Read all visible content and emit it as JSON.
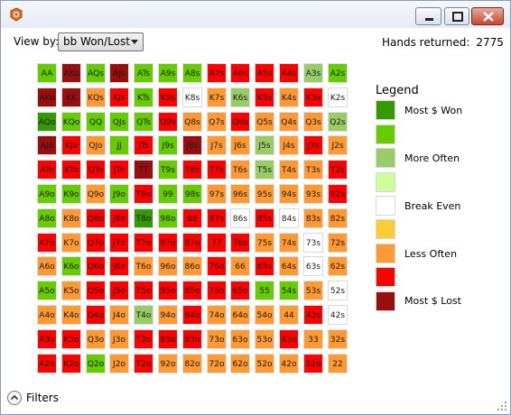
{
  "toolbar": {
    "view_by_label": "View by:",
    "view_by_value": "bb Won/Lost",
    "hands_label": "Hands returned:",
    "hands_value": "2775"
  },
  "colors": {
    "dg": "#339a00",
    "lg": "#66cc00",
    "pg": "#99cc66",
    "vl": "#ccff99",
    "w": "#ffffff",
    "y": "#ffcc33",
    "o": "#ff9933",
    "r": "#ff0000",
    "dr": "#990f0f"
  },
  "matrix": {
    "rows": [
      [
        [
          "AA",
          "lg"
        ],
        [
          "AKs",
          "dr"
        ],
        [
          "AQs",
          "lg"
        ],
        [
          "AJs",
          "dr"
        ],
        [
          "ATs",
          "lg"
        ],
        [
          "A9s",
          "lg"
        ],
        [
          "A8s",
          "lg"
        ],
        [
          "A7s",
          "r"
        ],
        [
          "A6s",
          "r"
        ],
        [
          "A5s",
          "r"
        ],
        [
          "A4s",
          "r"
        ],
        [
          "A3s",
          "pg"
        ],
        [
          "A2s",
          "lg"
        ]
      ],
      [
        [
          "AKo",
          "dr"
        ],
        [
          "KK",
          "dr"
        ],
        [
          "KQs",
          "o"
        ],
        [
          "KJs",
          "r"
        ],
        [
          "KTs",
          "lg"
        ],
        [
          "K9s",
          "r"
        ],
        [
          "K8s",
          "w"
        ],
        [
          "K7s",
          "o"
        ],
        [
          "K6s",
          "pg"
        ],
        [
          "K5s",
          "r"
        ],
        [
          "K4s",
          "o"
        ],
        [
          "K3s",
          "r"
        ],
        [
          "K2s",
          "w"
        ]
      ],
      [
        [
          "AQo",
          "dg"
        ],
        [
          "KQo",
          "lg"
        ],
        [
          "QQ",
          "lg"
        ],
        [
          "QJs",
          "lg"
        ],
        [
          "QTs",
          "lg"
        ],
        [
          "Q9s",
          "r"
        ],
        [
          "Q8s",
          "o"
        ],
        [
          "Q7s",
          "o"
        ],
        [
          "Q6s",
          "r"
        ],
        [
          "Q5s",
          "o"
        ],
        [
          "Q4s",
          "o"
        ],
        [
          "Q3s",
          "o"
        ],
        [
          "Q2s",
          "pg"
        ]
      ],
      [
        [
          "AJo",
          "dr"
        ],
        [
          "KJo",
          "r"
        ],
        [
          "QJo",
          "o"
        ],
        [
          "JJ",
          "lg"
        ],
        [
          "JTs",
          "r"
        ],
        [
          "J9s",
          "lg"
        ],
        [
          "J8s",
          "dr"
        ],
        [
          "J7s",
          "o"
        ],
        [
          "J6s",
          "o"
        ],
        [
          "J5s",
          "pg"
        ],
        [
          "J4s",
          "o"
        ],
        [
          "J3s",
          "r"
        ],
        [
          "J2s",
          "o"
        ]
      ],
      [
        [
          "ATo",
          "r"
        ],
        [
          "KTo",
          "r"
        ],
        [
          "QTo",
          "r"
        ],
        [
          "JTo",
          "r"
        ],
        [
          "TT",
          "dr"
        ],
        [
          "T9s",
          "lg"
        ],
        [
          "T8s",
          "r"
        ],
        [
          "T7s",
          "r"
        ],
        [
          "T6s",
          "o"
        ],
        [
          "T5s",
          "pg"
        ],
        [
          "T4s",
          "o"
        ],
        [
          "T3s",
          "o"
        ],
        [
          "T2s",
          "r"
        ]
      ],
      [
        [
          "A9o",
          "lg"
        ],
        [
          "K9o",
          "lg"
        ],
        [
          "Q9o",
          "o"
        ],
        [
          "J9o",
          "lg"
        ],
        [
          "T9o",
          "r"
        ],
        [
          "99",
          "lg"
        ],
        [
          "98s",
          "lg"
        ],
        [
          "97s",
          "o"
        ],
        [
          "96s",
          "o"
        ],
        [
          "95s",
          "o"
        ],
        [
          "94s",
          "o"
        ],
        [
          "93s",
          "o"
        ],
        [
          "92s",
          "r"
        ]
      ],
      [
        [
          "A8o",
          "lg"
        ],
        [
          "K8o",
          "o"
        ],
        [
          "Q8o",
          "r"
        ],
        [
          "J8o",
          "r"
        ],
        [
          "T8o",
          "dg"
        ],
        [
          "98o",
          "lg"
        ],
        [
          "88",
          "r"
        ],
        [
          "87s",
          "r"
        ],
        [
          "86s",
          "w"
        ],
        [
          "85s",
          "r"
        ],
        [
          "84s",
          "w"
        ],
        [
          "83s",
          "o"
        ],
        [
          "82s",
          "o"
        ]
      ],
      [
        [
          "A7o",
          "r"
        ],
        [
          "K7o",
          "o"
        ],
        [
          "Q7o",
          "r"
        ],
        [
          "J7o",
          "r"
        ],
        [
          "T7o",
          "r"
        ],
        [
          "97o",
          "r"
        ],
        [
          "87o",
          "r"
        ],
        [
          "77",
          "r"
        ],
        [
          "76s",
          "r"
        ],
        [
          "75s",
          "o"
        ],
        [
          "74s",
          "o"
        ],
        [
          "73s",
          "w"
        ],
        [
          "72s",
          "o"
        ]
      ],
      [
        [
          "A6o",
          "o"
        ],
        [
          "K6o",
          "lg"
        ],
        [
          "Q6o",
          "r"
        ],
        [
          "J6o",
          "r"
        ],
        [
          "T6o",
          "o"
        ],
        [
          "96o",
          "o"
        ],
        [
          "86o",
          "o"
        ],
        [
          "76o",
          "r"
        ],
        [
          "66",
          "o"
        ],
        [
          "65s",
          "r"
        ],
        [
          "64s",
          "o"
        ],
        [
          "63s",
          "w"
        ],
        [
          "62s",
          "o"
        ]
      ],
      [
        [
          "A5o",
          "lg"
        ],
        [
          "K5o",
          "o"
        ],
        [
          "Q5o",
          "r"
        ],
        [
          "J5o",
          "r"
        ],
        [
          "T5o",
          "r"
        ],
        [
          "95o",
          "r"
        ],
        [
          "85o",
          "r"
        ],
        [
          "75o",
          "r"
        ],
        [
          "65o",
          "r"
        ],
        [
          "55",
          "lg"
        ],
        [
          "54s",
          "lg"
        ],
        [
          "53s",
          "o"
        ],
        [
          "52s",
          "w"
        ]
      ],
      [
        [
          "A4o",
          "o"
        ],
        [
          "K4o",
          "o"
        ],
        [
          "Q4o",
          "r"
        ],
        [
          "J4o",
          "o"
        ],
        [
          "T4o",
          "pg"
        ],
        [
          "94o",
          "o"
        ],
        [
          "84o",
          "r"
        ],
        [
          "74o",
          "o"
        ],
        [
          "64o",
          "o"
        ],
        [
          "54o",
          "o"
        ],
        [
          "44",
          "o"
        ],
        [
          "43s",
          "r"
        ],
        [
          "42s",
          "w"
        ]
      ],
      [
        [
          "A3o",
          "r"
        ],
        [
          "K3o",
          "r"
        ],
        [
          "Q3o",
          "o"
        ],
        [
          "J3o",
          "o"
        ],
        [
          "T3o",
          "r"
        ],
        [
          "93o",
          "r"
        ],
        [
          "83o",
          "r"
        ],
        [
          "73o",
          "o"
        ],
        [
          "63o",
          "o"
        ],
        [
          "53o",
          "o"
        ],
        [
          "43o",
          "r"
        ],
        [
          "33",
          "o"
        ],
        [
          "32s",
          "o"
        ]
      ],
      [
        [
          "A2o",
          "r"
        ],
        [
          "K2o",
          "r"
        ],
        [
          "Q2o",
          "lg"
        ],
        [
          "J2o",
          "o"
        ],
        [
          "T2o",
          "r"
        ],
        [
          "92o",
          "o"
        ],
        [
          "82o",
          "o"
        ],
        [
          "72o",
          "o"
        ],
        [
          "62o",
          "o"
        ],
        [
          "52o",
          "o"
        ],
        [
          "42o",
          "o"
        ],
        [
          "32o",
          "r"
        ],
        [
          "22",
          "o"
        ]
      ]
    ]
  },
  "legend": {
    "title": "Legend",
    "swatches": [
      "dg",
      "lg",
      "pg",
      "vl",
      "w",
      "y",
      "o",
      "r",
      "dr"
    ],
    "labels": [
      "Most $ Won",
      "More Often",
      "Break Even",
      "Less Often",
      "Most $ Lost"
    ]
  },
  "footer": {
    "filters_label": "Filters"
  }
}
